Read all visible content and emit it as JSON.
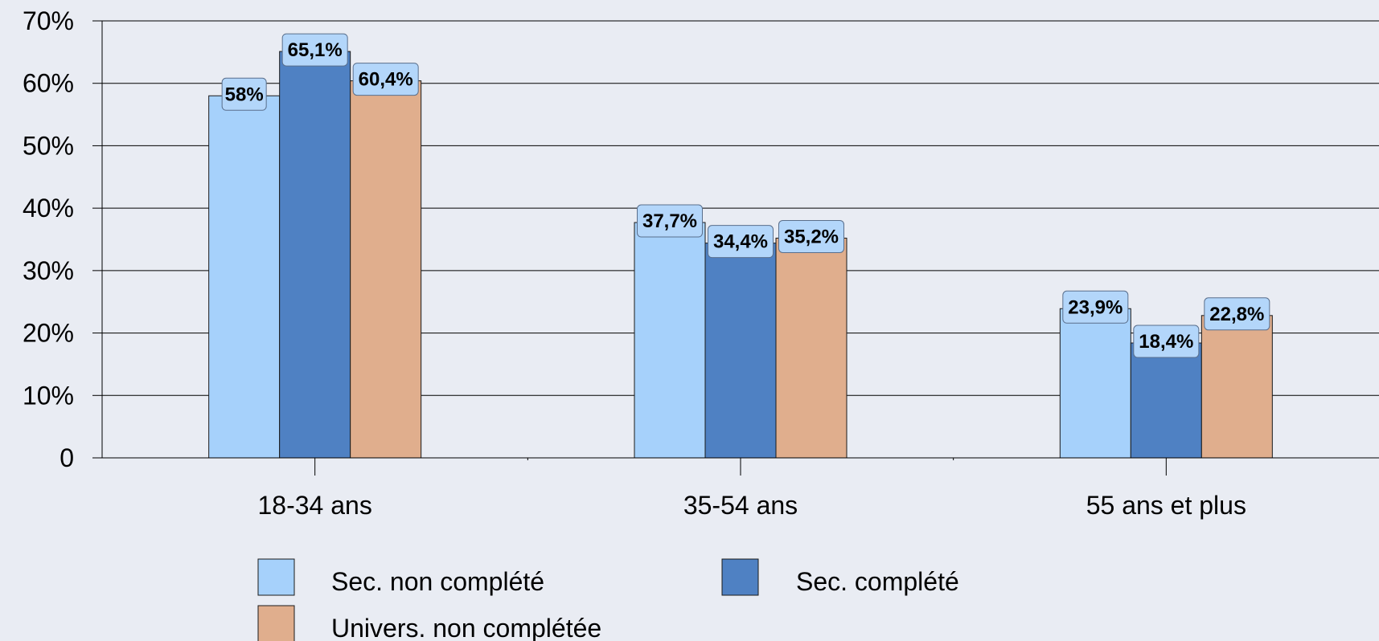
{
  "colors": {
    "background": "#e9ecf3",
    "grid": "#000000",
    "label_box": "#b3d6fa",
    "series": [
      "#a6d1fb",
      "#4f81c3",
      "#e0ae8d"
    ]
  },
  "chart_data": {
    "type": "bar",
    "title": "",
    "xlabel": "",
    "ylabel": "",
    "ylim": [
      0,
      70
    ],
    "yticks": [
      0,
      10,
      20,
      30,
      40,
      50,
      60,
      70
    ],
    "ytick_labels": [
      "0",
      "10%",
      "20%",
      "30%",
      "40%",
      "50%",
      "60%",
      "70%"
    ],
    "grid": true,
    "legend_position": "bottom",
    "categories": [
      "18-34 ans",
      "35-54 ans",
      "55 ans et plus"
    ],
    "series": [
      {
        "name": "Sec. non complété",
        "values": [
          58,
          37.7,
          23.9
        ],
        "labels": [
          "58%",
          "37,7%",
          "23,9%"
        ]
      },
      {
        "name": "Sec. complété",
        "values": [
          65.1,
          34.4,
          18.4
        ],
        "labels": [
          "65,1%",
          "34,4%",
          "18,4%"
        ]
      },
      {
        "name": "Univers. non complétée",
        "values": [
          60.4,
          35.2,
          22.8
        ],
        "labels": [
          "60,4%",
          "35,2%",
          "22,8%"
        ]
      }
    ]
  }
}
